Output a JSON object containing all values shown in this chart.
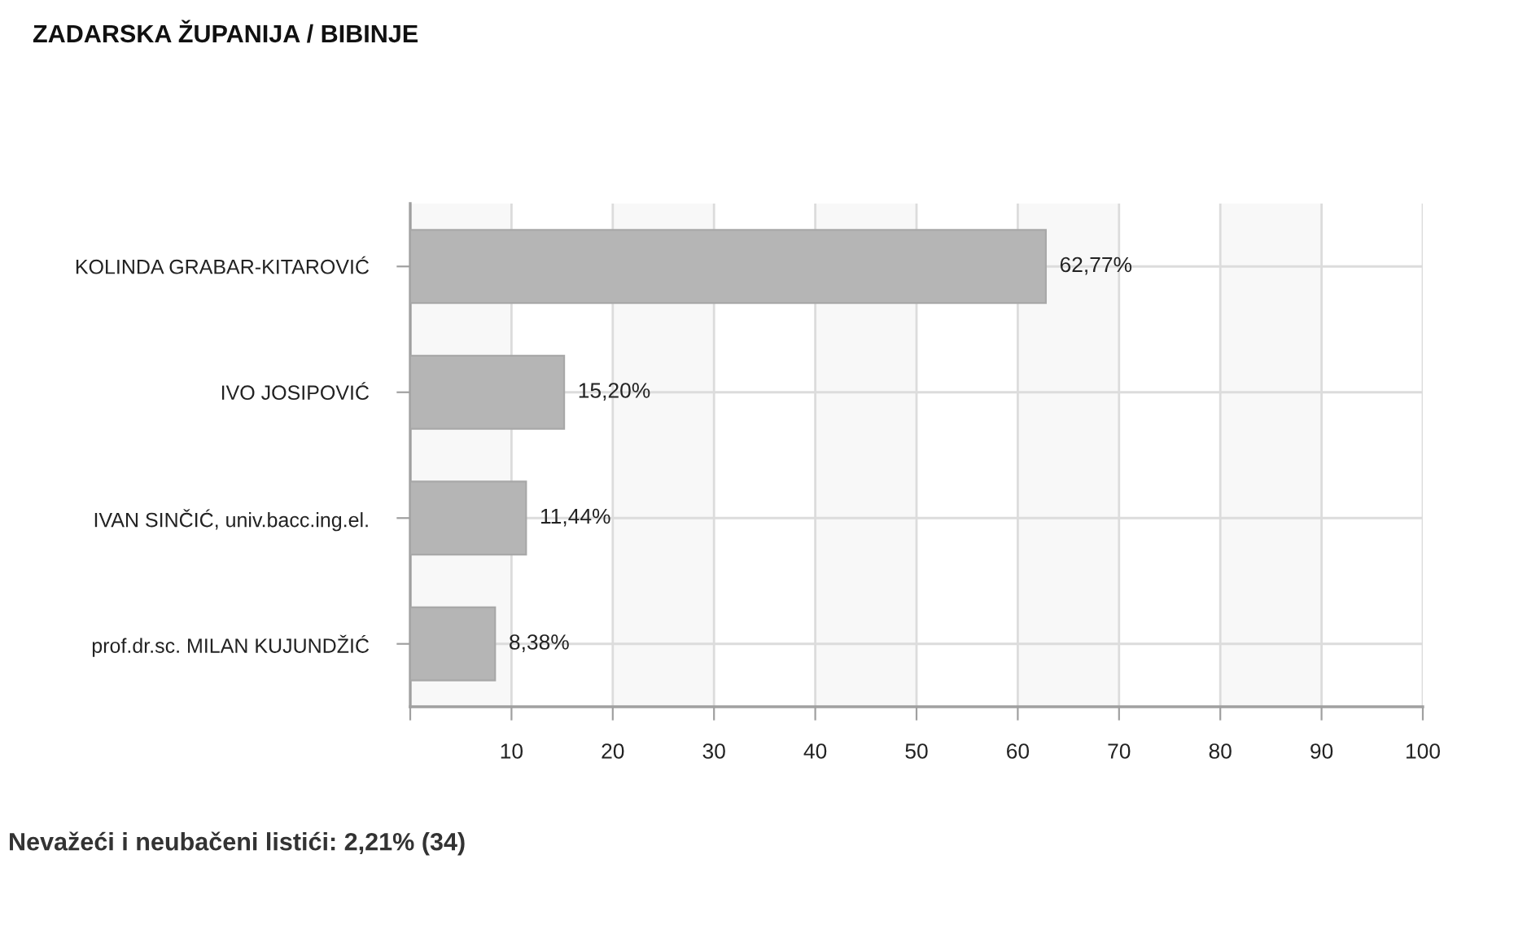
{
  "chart_data": {
    "type": "bar",
    "orientation": "horizontal",
    "title": "ZADARSKA ŽUPANIJA / BIBINJE",
    "categories": [
      "KOLINDA GRABAR-KITAROVIĆ",
      "IVO JOSIPOVIĆ",
      "IVAN SINČIĆ, univ.bacc.ing.el.",
      "prof.dr.sc. MILAN KUJUNDŽIĆ"
    ],
    "values": [
      62.77,
      15.2,
      11.44,
      8.38
    ],
    "value_labels": [
      "62,77%",
      "15,20%",
      "11,44%",
      "8,38%"
    ],
    "color": "#b5b5b5",
    "xlim": [
      0,
      100
    ],
    "xticks": [
      {
        "value": 0,
        "label": null
      },
      10,
      20,
      30,
      40,
      50,
      60,
      70,
      80,
      90,
      100
    ],
    "grid": true,
    "bands": [
      {
        "axis": "x",
        "from": 0,
        "to": 10,
        "color": "#f8f8f8"
      },
      {
        "axis": "x",
        "from": 20,
        "to": 30,
        "color": "#f8f8f8"
      },
      {
        "axis": "x",
        "from": 40,
        "to": 50,
        "color": "#f8f8f8"
      },
      {
        "axis": "x",
        "from": 60,
        "to": 70,
        "color": "#f8f8f8"
      },
      {
        "axis": "x",
        "from": 80,
        "to": 90,
        "color": "#f8f8f8"
      }
    ],
    "annotations": [
      "Nevažeći i neubačeni listići: 2,21% (34)"
    ]
  }
}
